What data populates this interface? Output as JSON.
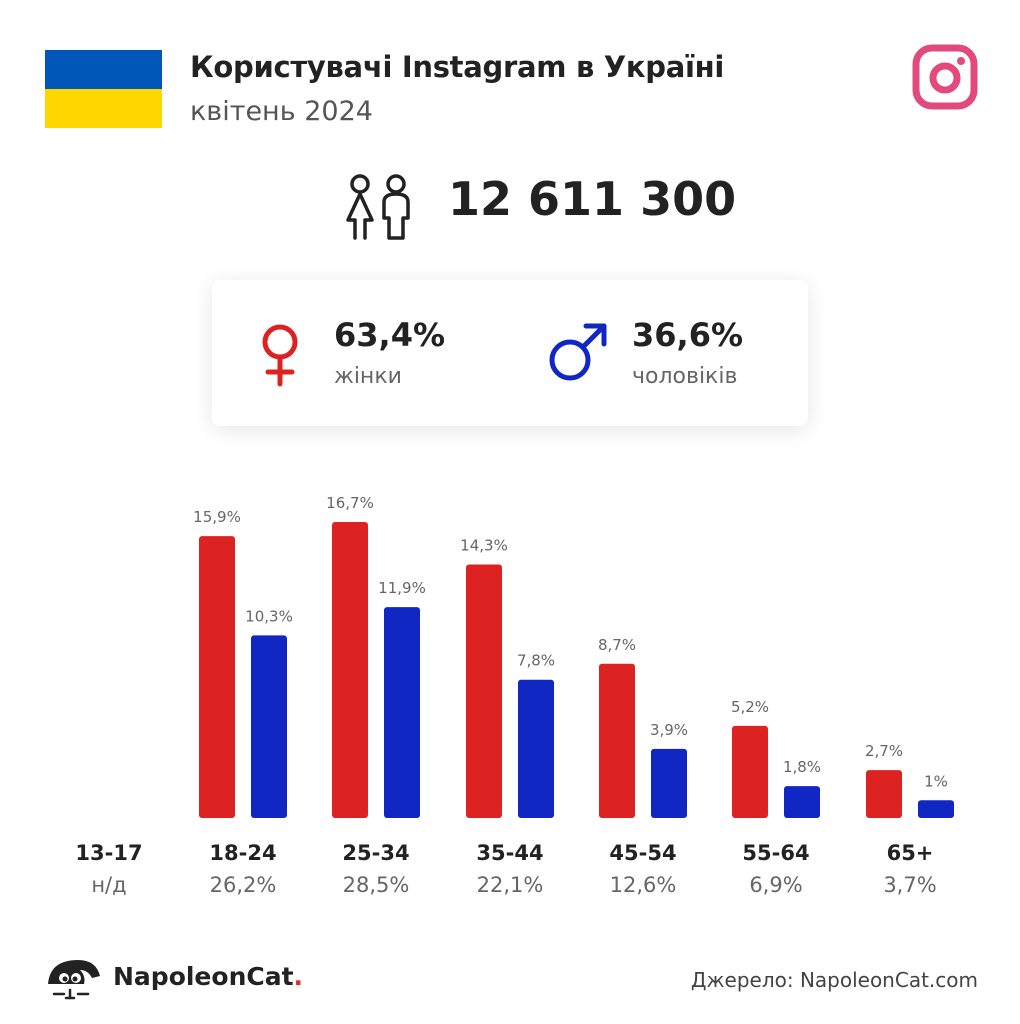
{
  "header": {
    "title": "Користувачі Instagram в Україні",
    "subtitle": "квітень 2024"
  },
  "icons": {
    "flag": "ukraine-flag-icon",
    "instagram": "instagram-icon",
    "users": "people-icon",
    "female": "female-icon",
    "male": "male-icon",
    "brand": "napoleoncat-logo-icon"
  },
  "total_users": "12 611 300",
  "gender": {
    "female_pct": "63,4%",
    "female_label": "жінки",
    "male_pct": "36,6%",
    "male_label": "чоловіків"
  },
  "colors": {
    "female": "#dd2222",
    "male": "#1027c3",
    "instagram": "#e24a7d",
    "flag_blue": "#0057b7",
    "flag_yellow": "#ffd700"
  },
  "chart_data": {
    "type": "bar",
    "categories": [
      "13-17",
      "18-24",
      "25-34",
      "35-44",
      "45-54",
      "55-64",
      "65+"
    ],
    "category_totals": [
      "н/д",
      "26,2%",
      "28,5%",
      "22,1%",
      "12,6%",
      "6,9%",
      "3,7%"
    ],
    "series": [
      {
        "color": "#dd2222",
        "values": [
          null,
          15.9,
          16.7,
          14.3,
          8.7,
          5.2,
          2.7
        ],
        "labels": [
          "",
          "15,9%",
          "16,7%",
          "14,3%",
          "8,7%",
          "5,2%",
          "2,7%"
        ]
      },
      {
        "color": "#1027c3",
        "values": [
          null,
          10.3,
          11.9,
          7.8,
          3.9,
          1.8,
          1.0
        ],
        "labels": [
          "",
          "10,3%",
          "11,9%",
          "7,8%",
          "3,9%",
          "1,8%",
          "1%"
        ]
      }
    ],
    "ylim": [
      0,
      16.7
    ],
    "grid": false,
    "axes_visible": false
  },
  "footer": {
    "brand_name": "NapoleonCat",
    "brand_dot": ".",
    "source": "Джерело: NapoleonCat.com"
  }
}
